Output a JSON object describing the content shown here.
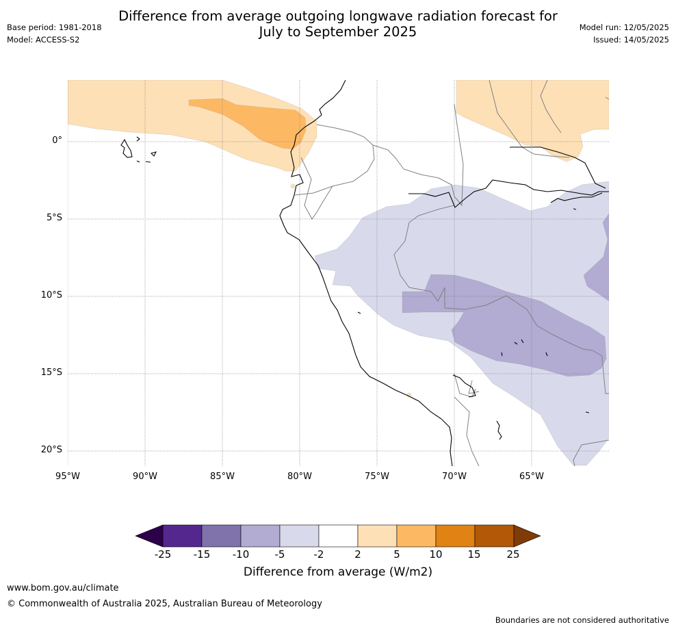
{
  "header": {
    "title_line1": "Difference from average outgoing longwave radiation forecast for",
    "title_line2": "July to September 2025",
    "base_period": "Base period: 1981-2018",
    "model": "Model: ACCESS-S2",
    "model_run": "Model run: 12/05/2025",
    "issued": "Issued: 14/05/2025"
  },
  "map": {
    "latitude_labels": [
      "0°",
      "5°S",
      "10°S",
      "15°S",
      "20°S"
    ],
    "longitude_labels": [
      "95°W",
      "90°W",
      "85°W",
      "80°W",
      "75°W",
      "70°W",
      "65°W"
    ],
    "colors": {
      "ocean_land_background": "#ffffff",
      "coastline": "#000000",
      "borders": "#808080",
      "gridlines": "#808080"
    }
  },
  "legend": {
    "title": "Difference from average (W/m2)",
    "tick_labels": [
      "-25",
      "-15",
      "-10",
      "-5",
      "-2",
      "2",
      "5",
      "10",
      "15",
      "25"
    ],
    "bins": [
      {
        "from": "-25",
        "to": "-15",
        "color": "#54278f"
      },
      {
        "from": "-15",
        "to": "-10",
        "color": "#8073ac"
      },
      {
        "from": "-10",
        "to": "-5",
        "color": "#b2abd2"
      },
      {
        "from": "-5",
        "to": "-2",
        "color": "#d8daeb"
      },
      {
        "from": "-2",
        "to": "2",
        "color": "#ffffff"
      },
      {
        "from": "2",
        "to": "5",
        "color": "#fee0b6"
      },
      {
        "from": "5",
        "to": "10",
        "color": "#fdb863"
      },
      {
        "from": "10",
        "to": "15",
        "color": "#e08214"
      },
      {
        "from": "15",
        "to": "25",
        "color": "#b35806"
      }
    ],
    "under_color": "#2d004b",
    "over_color": "#7f3b08"
  },
  "footer": {
    "url": "www.bom.gov.au/climate",
    "copyright": "© Commonwealth of Australia 2025, Australian Bureau of Meteorology",
    "disclaimer": "Boundaries are not considered authoritative"
  }
}
